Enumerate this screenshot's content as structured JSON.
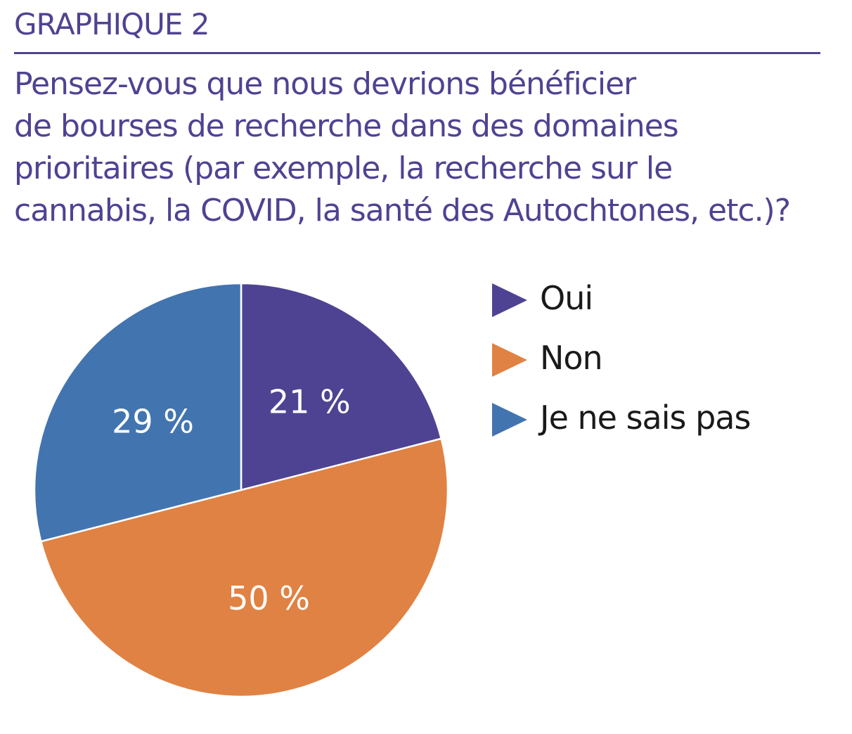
{
  "header": {
    "label": "GRAPHIQUE 2",
    "question_lines": [
      "Pensez-vous que nous devrions bénéficier",
      "de bourses de recherche dans des domaines",
      "prioritaires (par exemple, la recherche sur le",
      "cannabis, la COVID, la santé des Autochtones, etc.)?"
    ]
  },
  "colors": {
    "accent": "#4e4392",
    "oui": "#4e4392",
    "non": "#e08243",
    "nsp": "#4274b0"
  },
  "chart_data": {
    "type": "pie",
    "legend_position": "right",
    "slices": [
      {
        "name": "Oui",
        "value": 21,
        "label": "21 %",
        "color": "#4e4392"
      },
      {
        "name": "Non",
        "value": 50,
        "label": "50 %",
        "color": "#e08243"
      },
      {
        "name": "Je ne sais pas",
        "value": 29,
        "label": "29 %",
        "color": "#4274b0"
      }
    ]
  }
}
